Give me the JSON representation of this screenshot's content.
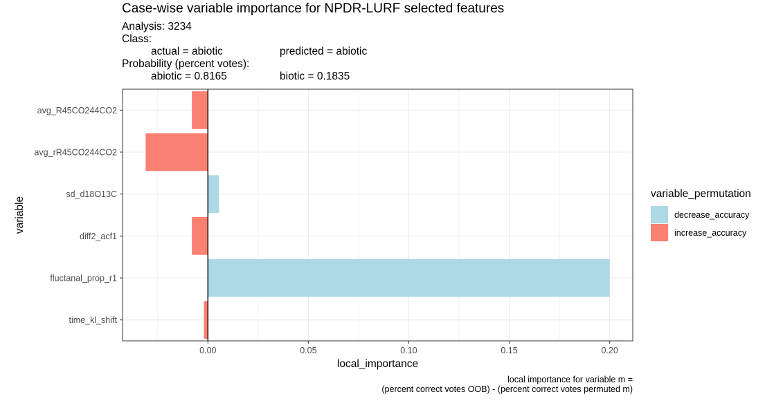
{
  "chart_data": {
    "type": "bar",
    "orientation": "horizontal",
    "title": "Case-wise variable importance for NPDR-LURF selected features",
    "subtitle": {
      "analysis": "Analysis: 3234",
      "class_heading": "Class:",
      "actual": "actual = abiotic",
      "predicted": "predicted = abiotic",
      "probability_heading": "Probability (percent votes):",
      "abiotic_prob": "abiotic = 0.8165",
      "biotic_prob": "biotic = 0.1835"
    },
    "xlabel": "local_importance",
    "ylabel": "variable",
    "xlim": [
      -0.0425,
      0.2115
    ],
    "x_ticks": [
      {
        "value": 0.0,
        "label": "0.00"
      },
      {
        "value": 0.05,
        "label": "0.05"
      },
      {
        "value": 0.1,
        "label": "0.10"
      },
      {
        "value": 0.15,
        "label": "0.15"
      },
      {
        "value": 0.2,
        "label": "0.20"
      }
    ],
    "x_minor_ticks": [
      -0.025,
      0.025,
      0.075,
      0.125,
      0.175
    ],
    "categories": [
      "avg_R45CO244CO2",
      "avg_rR45CO244CO2",
      "sd_d18O13C",
      "diff2_acf1",
      "fluctanal_prop_r1",
      "time_kl_shift"
    ],
    "values": [
      -0.008,
      -0.031,
      0.0055,
      -0.008,
      0.2,
      -0.002
    ],
    "groups": [
      "increase_accuracy",
      "increase_accuracy",
      "decrease_accuracy",
      "increase_accuracy",
      "decrease_accuracy",
      "increase_accuracy"
    ],
    "legend": {
      "title": "variable_permutation",
      "position": "right",
      "entries": [
        {
          "name": "decrease_accuracy",
          "color": "#add8e6"
        },
        {
          "name": "increase_accuracy",
          "color": "#fa8072"
        }
      ]
    },
    "grid": true,
    "caption_lines": [
      "local importance for variable m =",
      "(percent correct votes OOB) - (percent correct votes permuted m)"
    ]
  },
  "colors": {
    "decrease_accuracy": "#add8e6",
    "increase_accuracy": "#fa8072",
    "grid": "#ebebeb",
    "panel_border": "#333333",
    "tick_text": "#4d4d4d"
  }
}
